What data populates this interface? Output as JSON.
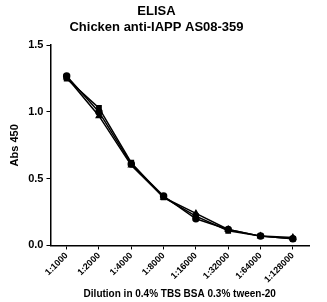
{
  "chart_data": {
    "type": "line",
    "title": "ELISA",
    "subtitle": "Chicken anti-IAPP AS08-359",
    "x_label": "Dilution in 0.4% TBS BSA 0.3% tween-20",
    "y_label": "Abs 450",
    "categories": [
      "1:1000",
      "1:2000",
      "1:4000",
      "1:8000",
      "1:16000",
      "1:32000",
      "1:64000",
      "1:128000"
    ],
    "series": [
      {
        "color": "#000000",
        "marker": "circle",
        "line_style": "solid",
        "values": [
          1.27,
          1.0,
          0.61,
          0.37,
          0.2,
          0.12,
          0.07,
          0.05
        ]
      },
      {
        "color": "#000000",
        "marker": "triangle",
        "line_style": "solid",
        "values": [
          1.26,
          0.97,
          0.6,
          0.36,
          0.24,
          0.12,
          0.07,
          0.06
        ]
      },
      {
        "color": "#000000",
        "marker": "square",
        "line_style": "solid",
        "values": [
          1.25,
          1.03,
          0.62,
          0.36,
          0.22,
          0.11,
          0.07,
          0.05
        ]
      }
    ],
    "ylim": [
      0,
      1.5
    ],
    "yticks": [
      {
        "value": 0,
        "label": "0.0"
      },
      {
        "value": 0.5,
        "label": "0.5"
      },
      {
        "value": 1,
        "label": "1.0"
      },
      {
        "value": 1.5,
        "label": "1.5"
      }
    ],
    "grid": false
  }
}
